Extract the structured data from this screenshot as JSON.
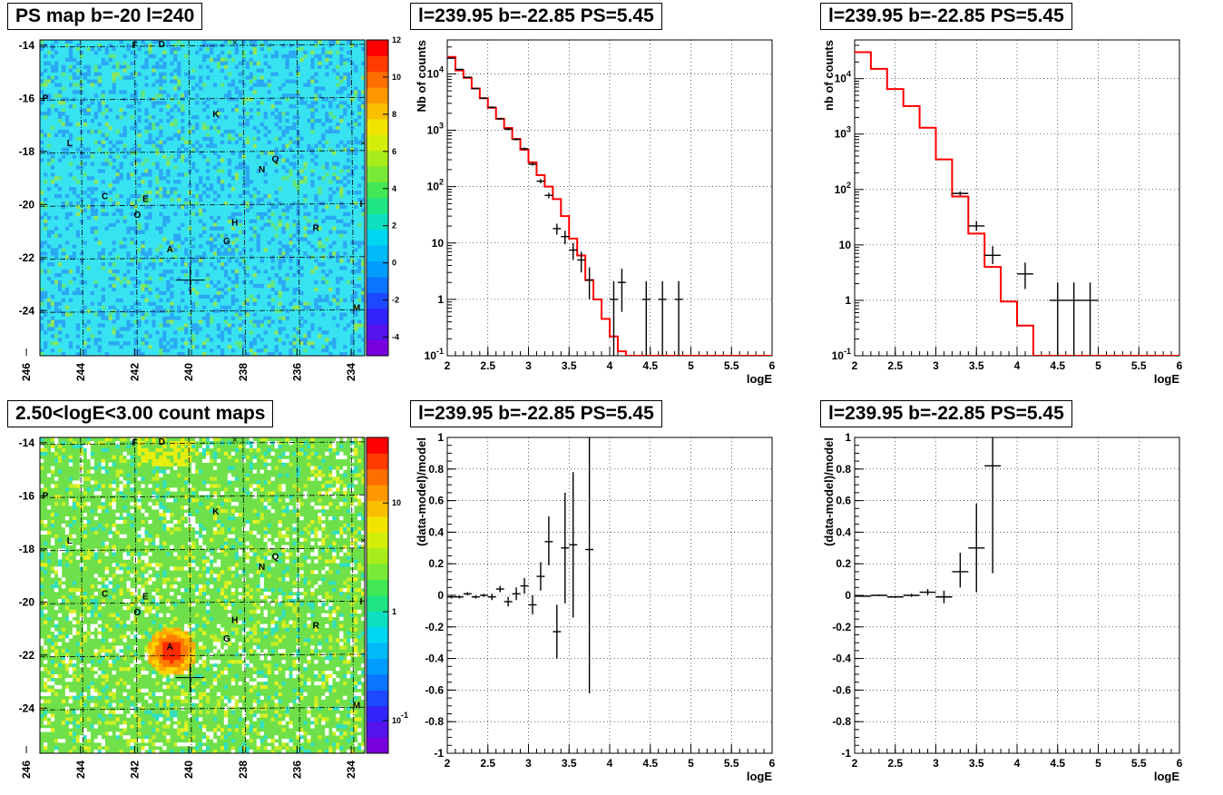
{
  "chart_data": [
    {
      "id": "map1",
      "type": "heatmap",
      "title": "PS map b=-20 l=240",
      "xlim": [
        245.5,
        233.5
      ],
      "ylim": [
        -25.7,
        -13.8
      ],
      "xticks": [
        246,
        244,
        242,
        240,
        238,
        236,
        234
      ],
      "yticks": [
        -14,
        -16,
        -18,
        -20,
        -22,
        -24
      ],
      "color_scale": {
        "min": -5,
        "max": 12,
        "ticks": [
          -4,
          -2,
          0,
          2,
          4,
          6,
          8,
          10,
          12
        ],
        "log": false
      },
      "base_color": "#37e3f0",
      "sources": [
        {
          "label": "F",
          "l": 242,
          "b": -14.1
        },
        {
          "label": "D",
          "l": 241,
          "b": -14.0
        },
        {
          "label": "P",
          "l": 246.9,
          "b": -16.1
        },
        {
          "label": "K",
          "l": 239.0,
          "b": -16.7
        },
        {
          "label": "L",
          "l": 244.4,
          "b": -17.8
        },
        {
          "label": "Q",
          "l": 236.8,
          "b": -18.4
        },
        {
          "label": "N",
          "l": 237.3,
          "b": -18.8
        },
        {
          "label": "C",
          "l": 243.1,
          "b": -19.8
        },
        {
          "label": "E",
          "l": 241.6,
          "b": -19.9
        },
        {
          "label": "O",
          "l": 241.9,
          "b": -20.5
        },
        {
          "label": "I",
          "l": 233.4,
          "b": -20.1
        },
        {
          "label": "H",
          "l": 238.3,
          "b": -20.8
        },
        {
          "label": "R",
          "l": 235.3,
          "b": -21.0
        },
        {
          "label": "G",
          "l": 238.6,
          "b": -21.5
        },
        {
          "label": "A",
          "l": 240.7,
          "b": -21.8
        },
        {
          "label": "M",
          "l": 233.8,
          "b": -24.0
        }
      ]
    },
    {
      "id": "spec1",
      "type": "line",
      "title": "l=239.95 b=-22.85 PS=5.45",
      "xlabel": "logE",
      "ylabel": "Nb of counts",
      "xlim": [
        2,
        6
      ],
      "ylim": [
        0.1,
        40000
      ],
      "log_y": true,
      "xticks": [
        2,
        2.5,
        3,
        3.5,
        4,
        4.5,
        5,
        5.5,
        6
      ],
      "yticks": [
        {
          "v": 0.1,
          "t": "10^-1"
        },
        {
          "v": 1,
          "t": "1"
        },
        {
          "v": 10,
          "t": "10"
        },
        {
          "v": 100,
          "t": "10^2"
        },
        {
          "v": 1000,
          "t": "10^3"
        },
        {
          "v": 10000,
          "t": "10^4"
        }
      ],
      "model_bin_width": 0.1,
      "model_x": [
        2.0,
        2.1,
        2.2,
        2.3,
        2.4,
        2.5,
        2.6,
        2.7,
        2.8,
        2.9,
        3.0,
        3.1,
        3.2,
        3.3,
        3.4,
        3.5,
        3.6,
        3.7,
        3.8,
        3.9,
        4.0,
        4.1,
        4.2,
        4.3,
        4.4,
        4.5,
        4.6,
        4.7,
        4.8,
        4.9,
        5.0,
        5.1,
        5.2,
        5.3,
        5.4,
        5.5,
        5.6,
        5.7,
        5.8,
        5.9
      ],
      "model_y": [
        20000,
        11500,
        8500,
        5500,
        3700,
        2500,
        1600,
        1100,
        700,
        450,
        270,
        160,
        100,
        60,
        30,
        12,
        6,
        2.2,
        1,
        0.45,
        0.22,
        0.12,
        0.1,
        0.1,
        0.1,
        0.1,
        0.1,
        0.1,
        0.1,
        0.1,
        0.1,
        0.1,
        0.1,
        0.1,
        0.1,
        0.1,
        0.1,
        0.1,
        0.1,
        0.1
      ],
      "data": [
        {
          "x": 2.05,
          "y": 19000,
          "lo": 18500,
          "hi": 19500
        },
        {
          "x": 2.15,
          "y": 12000,
          "lo": 11700,
          "hi": 12300
        },
        {
          "x": 2.25,
          "y": 8700,
          "lo": 8500,
          "hi": 8900
        },
        {
          "x": 2.35,
          "y": 5500,
          "lo": 5350,
          "hi": 5650
        },
        {
          "x": 2.45,
          "y": 3700,
          "lo": 3600,
          "hi": 3800
        },
        {
          "x": 2.55,
          "y": 2550,
          "lo": 2450,
          "hi": 2650
        },
        {
          "x": 2.65,
          "y": 1600,
          "lo": 1540,
          "hi": 1660
        },
        {
          "x": 2.75,
          "y": 1050,
          "lo": 1000,
          "hi": 1100
        },
        {
          "x": 2.85,
          "y": 690,
          "lo": 660,
          "hi": 720
        },
        {
          "x": 2.95,
          "y": 470,
          "lo": 445,
          "hi": 495
        },
        {
          "x": 3.05,
          "y": 250,
          "lo": 235,
          "hi": 265
        },
        {
          "x": 3.15,
          "y": 125,
          "lo": 114,
          "hi": 136
        },
        {
          "x": 3.25,
          "y": 70,
          "lo": 62,
          "hi": 78
        },
        {
          "x": 3.35,
          "y": 18,
          "lo": 14,
          "hi": 22
        },
        {
          "x": 3.45,
          "y": 13,
          "lo": 9.5,
          "hi": 16.5
        },
        {
          "x": 3.55,
          "y": 7.5,
          "lo": 5,
          "hi": 10
        },
        {
          "x": 3.65,
          "y": 5,
          "lo": 3,
          "hi": 7
        },
        {
          "x": 3.75,
          "y": 2.2,
          "lo": 1,
          "hi": 3.7
        },
        {
          "x": 4.05,
          "y": 1,
          "lo": 0.1,
          "hi": 2.1
        },
        {
          "x": 4.15,
          "y": 2,
          "lo": 0.6,
          "hi": 3.5
        },
        {
          "x": 4.45,
          "y": 1,
          "lo": 0.1,
          "hi": 2.1
        },
        {
          "x": 4.65,
          "y": 1,
          "lo": 0.1,
          "hi": 2.1
        },
        {
          "x": 4.85,
          "y": 1,
          "lo": 0.1,
          "hi": 2.1
        }
      ],
      "data_halfwidth": 0.05
    },
    {
      "id": "spec2",
      "type": "line",
      "title": "l=239.95 b=-22.85 PS=5.45",
      "xlabel": "logE",
      "ylabel": "nb of counts",
      "xlim": [
        2,
        6
      ],
      "ylim": [
        0.1,
        50000
      ],
      "log_y": true,
      "xticks": [
        2,
        2.5,
        3,
        3.5,
        4,
        4.5,
        5,
        5.5,
        6
      ],
      "yticks": [
        {
          "v": 0.1,
          "t": "10^-1"
        },
        {
          "v": 1,
          "t": "1"
        },
        {
          "v": 10,
          "t": "10"
        },
        {
          "v": 100,
          "t": "10^2"
        },
        {
          "v": 1000,
          "t": "10^3"
        },
        {
          "v": 10000,
          "t": "10^4"
        }
      ],
      "model_bin_width": 0.2,
      "model_x": [
        2.0,
        2.2,
        2.4,
        2.6,
        2.8,
        3.0,
        3.2,
        3.4,
        3.6,
        3.8,
        4.0,
        4.2,
        4.4,
        4.6,
        4.8,
        5.0,
        5.2,
        5.4,
        5.6,
        5.8
      ],
      "model_y": [
        30000,
        15000,
        6500,
        3200,
        1300,
        350,
        75,
        16,
        4,
        0.95,
        0.35,
        0.1,
        0.1,
        0.1,
        0.1,
        0.1,
        0.1,
        0.1,
        0.1,
        0.1
      ],
      "data": [
        {
          "x": 3.3,
          "y": 85,
          "lo": 78,
          "hi": 92
        },
        {
          "x": 3.5,
          "y": 22,
          "lo": 18,
          "hi": 27
        },
        {
          "x": 3.7,
          "y": 6.5,
          "lo": 4.5,
          "hi": 9.5
        },
        {
          "x": 4.1,
          "y": 3,
          "lo": 1.6,
          "hi": 4.8
        },
        {
          "x": 4.5,
          "y": 1,
          "lo": 0.1,
          "hi": 2.1
        },
        {
          "x": 4.7,
          "y": 1,
          "lo": 0.1,
          "hi": 2.1
        },
        {
          "x": 4.9,
          "y": 1,
          "lo": 0.1,
          "hi": 2.1
        }
      ],
      "data_halfwidth": 0.1
    },
    {
      "id": "map2",
      "type": "heatmap",
      "title": "2.50<logE<3.00 count maps",
      "xlim": [
        245.5,
        233.5
      ],
      "ylim": [
        -25.7,
        -13.8
      ],
      "xticks": [
        246,
        244,
        242,
        240,
        238,
        236,
        234
      ],
      "yticks": [
        -14,
        -16,
        -18,
        -20,
        -22,
        -24
      ],
      "color_scale": {
        "min": 0.05,
        "max": 40,
        "ticks": [
          {
            "v": 0.1,
            "t": "10^-1"
          },
          {
            "v": 1,
            "t": "1"
          },
          {
            "v": 10,
            "t": "10"
          }
        ],
        "log": true
      },
      "base_color": "#6fe04a",
      "sources": [
        {
          "label": "F",
          "l": 242,
          "b": -14.1
        },
        {
          "label": "D",
          "l": 241,
          "b": -14.0
        },
        {
          "label": "P",
          "l": 246.9,
          "b": -16.1
        },
        {
          "label": "K",
          "l": 239.0,
          "b": -16.7
        },
        {
          "label": "L",
          "l": 244.4,
          "b": -17.8
        },
        {
          "label": "Q",
          "l": 236.8,
          "b": -18.4
        },
        {
          "label": "N",
          "l": 237.3,
          "b": -18.8
        },
        {
          "label": "C",
          "l": 243.1,
          "b": -19.8
        },
        {
          "label": "E",
          "l": 241.6,
          "b": -19.9
        },
        {
          "label": "O",
          "l": 241.9,
          "b": -20.5
        },
        {
          "label": "I",
          "l": 233.4,
          "b": -20.1
        },
        {
          "label": "H",
          "l": 238.3,
          "b": -20.8
        },
        {
          "label": "R",
          "l": 235.3,
          "b": -21.0
        },
        {
          "label": "G",
          "l": 238.6,
          "b": -21.5
        },
        {
          "label": "A",
          "l": 240.7,
          "b": -21.8
        },
        {
          "label": "M",
          "l": 233.8,
          "b": -24.0
        }
      ]
    },
    {
      "id": "res1",
      "type": "scatter",
      "title": "l=239.95 b=-22.85 PS=5.45",
      "xlabel": "logE",
      "ylabel": "(data-model)/model",
      "xlim": [
        2,
        6
      ],
      "ylim": [
        -1,
        1
      ],
      "log_y": false,
      "xticks": [
        2,
        2.5,
        3,
        3.5,
        4,
        4.5,
        5,
        5.5,
        6
      ],
      "yticks": [
        -1,
        -0.8,
        -0.6,
        -0.4,
        -0.2,
        0,
        0.2,
        0.4,
        0.6,
        0.8,
        1
      ],
      "data": [
        {
          "x": 2.05,
          "y": -0.01,
          "lo": -0.02,
          "hi": 0.0
        },
        {
          "x": 2.15,
          "y": -0.01,
          "lo": -0.02,
          "hi": 0.0
        },
        {
          "x": 2.25,
          "y": 0.01,
          "lo": 0.0,
          "hi": 0.02
        },
        {
          "x": 2.35,
          "y": -0.01,
          "lo": -0.02,
          "hi": 0.0
        },
        {
          "x": 2.45,
          "y": 0.0,
          "lo": -0.01,
          "hi": 0.01
        },
        {
          "x": 2.55,
          "y": -0.01,
          "lo": -0.03,
          "hi": 0.01
        },
        {
          "x": 2.65,
          "y": 0.04,
          "lo": 0.02,
          "hi": 0.06
        },
        {
          "x": 2.75,
          "y": -0.04,
          "lo": -0.07,
          "hi": -0.01
        },
        {
          "x": 2.85,
          "y": 0.01,
          "lo": -0.03,
          "hi": 0.05
        },
        {
          "x": 2.95,
          "y": 0.06,
          "lo": 0.01,
          "hi": 0.11
        },
        {
          "x": 3.05,
          "y": -0.06,
          "lo": -0.12,
          "hi": 0.0
        },
        {
          "x": 3.15,
          "y": 0.12,
          "lo": 0.03,
          "hi": 0.21
        },
        {
          "x": 3.25,
          "y": 0.34,
          "lo": 0.19,
          "hi": 0.5
        },
        {
          "x": 3.35,
          "y": -0.23,
          "lo": -0.4,
          "hi": -0.06
        },
        {
          "x": 3.45,
          "y": 0.3,
          "lo": -0.05,
          "hi": 0.65
        },
        {
          "x": 3.55,
          "y": 0.32,
          "lo": -0.14,
          "hi": 0.78
        },
        {
          "x": 3.75,
          "y": 0.29,
          "lo": -0.62,
          "hi": 1.2
        }
      ],
      "data_halfwidth": 0.05
    },
    {
      "id": "res2",
      "type": "scatter",
      "title": "l=239.95 b=-22.85 PS=5.45",
      "xlabel": "logE",
      "ylabel": "(data-model)/model",
      "xlim": [
        2,
        6
      ],
      "ylim": [
        -1,
        1
      ],
      "log_y": false,
      "xticks": [
        2,
        2.5,
        3,
        3.5,
        4,
        4.5,
        5,
        5.5,
        6
      ],
      "yticks": [
        -1,
        -0.8,
        -0.6,
        -0.4,
        -0.2,
        0,
        0.2,
        0.4,
        0.6,
        0.8,
        1
      ],
      "data": [
        {
          "x": 2.1,
          "y": -0.005,
          "lo": -0.01,
          "hi": 0.0
        },
        {
          "x": 2.3,
          "y": 0.0,
          "lo": -0.005,
          "hi": 0.005
        },
        {
          "x": 2.5,
          "y": -0.01,
          "lo": -0.015,
          "hi": -0.005
        },
        {
          "x": 2.7,
          "y": 0.0,
          "lo": -0.01,
          "hi": 0.01
        },
        {
          "x": 2.9,
          "y": 0.02,
          "lo": 0.0,
          "hi": 0.04
        },
        {
          "x": 3.1,
          "y": -0.01,
          "lo": -0.05,
          "hi": 0.03
        },
        {
          "x": 3.3,
          "y": 0.15,
          "lo": 0.05,
          "hi": 0.27
        },
        {
          "x": 3.5,
          "y": 0.3,
          "lo": 0.02,
          "hi": 0.58
        },
        {
          "x": 3.7,
          "y": 0.82,
          "lo": 0.14,
          "hi": 1.2
        }
      ],
      "data_halfwidth": 0.1
    }
  ]
}
